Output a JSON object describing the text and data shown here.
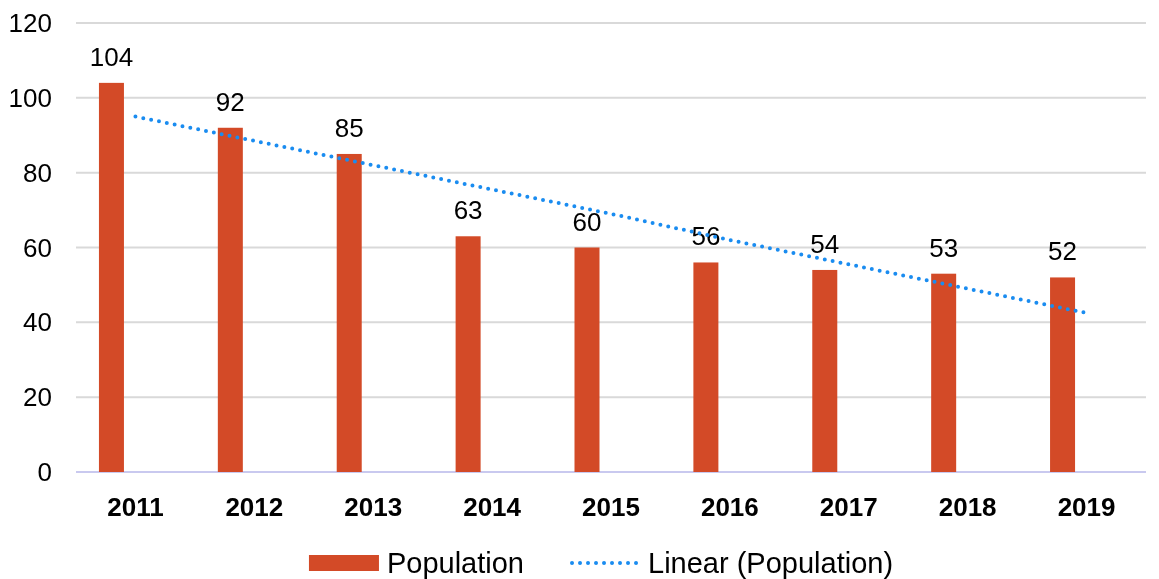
{
  "chart_data": {
    "type": "bar",
    "categories": [
      "2011",
      "2012",
      "2013",
      "2014",
      "2015",
      "2016",
      "2017",
      "2018",
      "2019"
    ],
    "series": [
      {
        "name": "Population",
        "color": "#d34a27",
        "values": [
          104,
          92,
          85,
          63,
          60,
          56,
          54,
          53,
          52
        ],
        "value_labels": [
          "104",
          "92",
          "85",
          "63",
          "60",
          "56",
          "54",
          "53",
          "52"
        ]
      },
      {
        "name": "Linear (Population)",
        "type": "line",
        "color": "#1a8cf0",
        "values": [
          95,
          88.5,
          82,
          75.5,
          69,
          62,
          55.5,
          49,
          42.5
        ],
        "line_style": "dotted"
      }
    ],
    "ylim": [
      0,
      120
    ],
    "yticks": [
      0,
      20,
      40,
      60,
      80,
      100,
      120
    ],
    "grid": "y",
    "legend": "bottom"
  }
}
